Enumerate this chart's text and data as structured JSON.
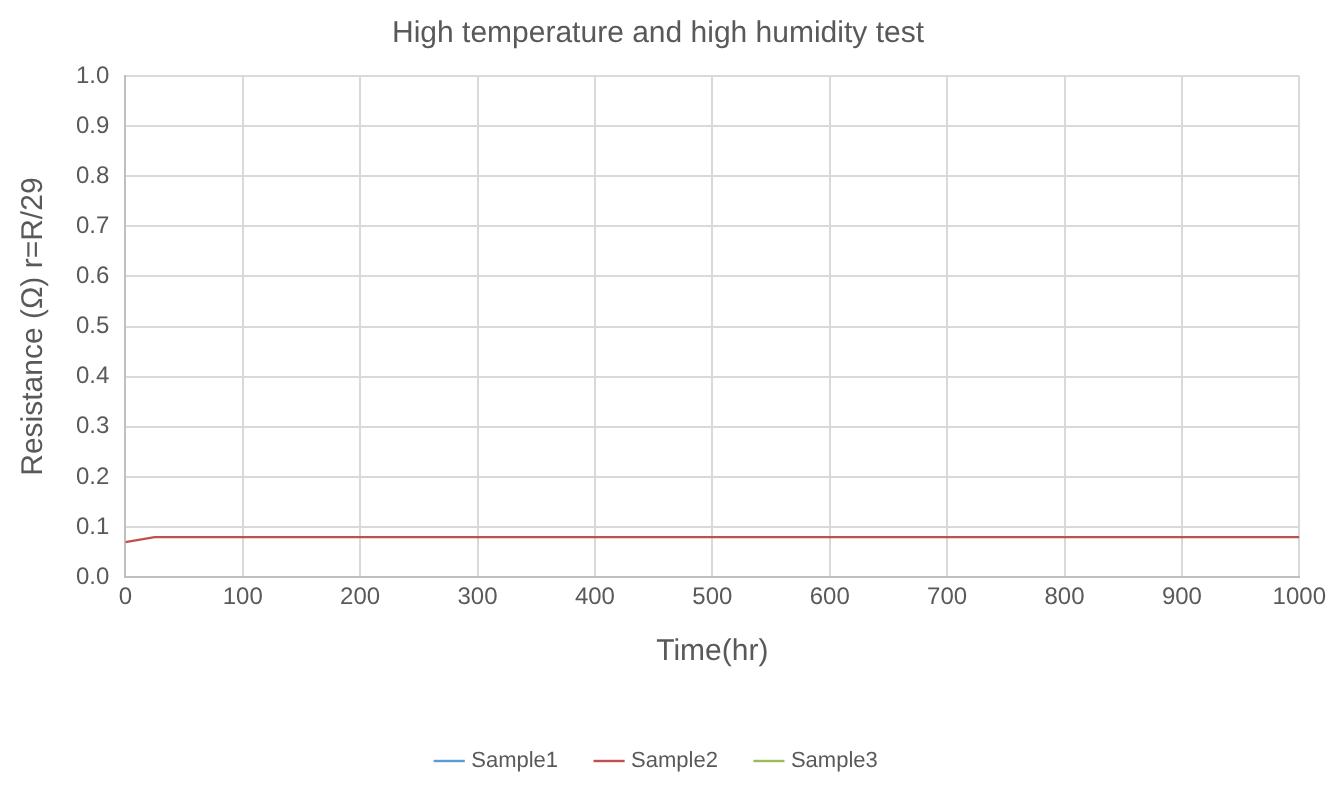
{
  "chart_data": {
    "type": "line",
    "title": "High temperature and high humidity test",
    "xlabel": "Time(hr)",
    "ylabel": "Resistance (Ω) r=R/29",
    "x": [
      0,
      25,
      1000
    ],
    "series": [
      {
        "name": "Sample1",
        "color": "#5b9bd5",
        "values": [
          null,
          null,
          null
        ]
      },
      {
        "name": "Sample2",
        "color": "#c0504d",
        "values": [
          0.07,
          0.08,
          0.08
        ]
      },
      {
        "name": "Sample3",
        "color": "#9bbb59",
        "values": [
          null,
          null,
          null
        ]
      }
    ],
    "xlim": [
      0,
      1000
    ],
    "xticks": [
      0,
      100,
      200,
      300,
      400,
      500,
      600,
      700,
      800,
      900,
      1000
    ],
    "ylim": [
      0,
      1
    ],
    "yticks": [
      {
        "value": 0,
        "label": "0.0"
      },
      0.1,
      0.2,
      0.3,
      0.4,
      0.5,
      0.6,
      0.7,
      0.8,
      0.9,
      {
        "value": 1,
        "label": "1.0"
      }
    ],
    "grid": true,
    "legend": "bottom",
    "marker": "none",
    "line_style": "solid"
  }
}
